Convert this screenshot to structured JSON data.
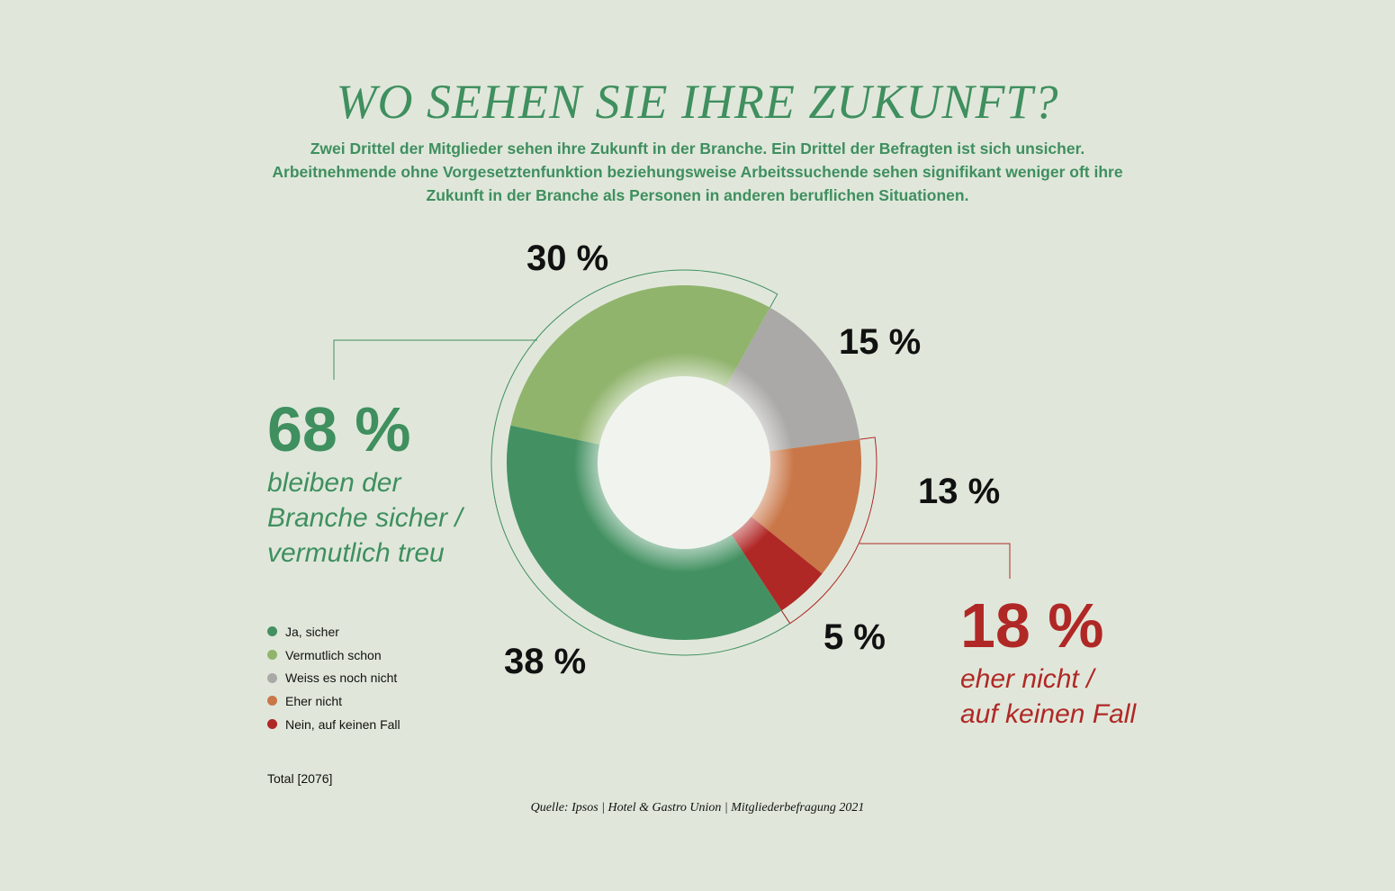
{
  "chart_data": {
    "type": "pie",
    "title": "WO SEHEN SIE IHRE ZUKUNFT?",
    "subtitle": "Zwei Drittel der Mitglieder sehen ihre Zukunft in der Branche. Ein Drittel der Befragten ist sich unsicher. Arbeitnehmende ohne Vorgesetztenfunktion beziehungsweise Arbeitssuchende sehen signifikant weniger oft ihre Zukunft in der Branche als Personen in anderen beruflichen Situationen.",
    "donut": true,
    "categories": [
      "Vermutlich schon",
      "Weiss es noch nicht",
      "Eher nicht",
      "Nein, auf keinen Fall",
      "Ja, sicher"
    ],
    "values": [
      30,
      15,
      13,
      5,
      38
    ],
    "labels": [
      "30 %",
      "15 %",
      "13 %",
      "5 %",
      "38 %"
    ],
    "colors": [
      "#91b46d",
      "#aaa9a7",
      "#c97748",
      "#b02826",
      "#439162"
    ],
    "legend": [
      {
        "label": "Ja, sicher",
        "color": "#439162"
      },
      {
        "label": "Vermutlich schon",
        "color": "#91b46d"
      },
      {
        "label": "Weiss es noch nicht",
        "color": "#aaa9a7"
      },
      {
        "label": "Eher nicht",
        "color": "#c97748"
      },
      {
        "label": "Nein, auf keinen Fall",
        "color": "#b02826"
      }
    ],
    "legend_position": "bottom-left",
    "groups": [
      {
        "value": "68 %",
        "text": [
          "bleiben der",
          "Branche sicher /",
          "vermutlich treu"
        ],
        "color": "#3f8f5f"
      },
      {
        "value": "18 %",
        "text": [
          "eher nicht /",
          "auf keinen Fall"
        ],
        "color": "#b02826"
      }
    ],
    "total": "Total [2076]",
    "source": "Quelle: Ipsos | Hotel & Gastro Union | Mitgliederbefragung 2021"
  }
}
